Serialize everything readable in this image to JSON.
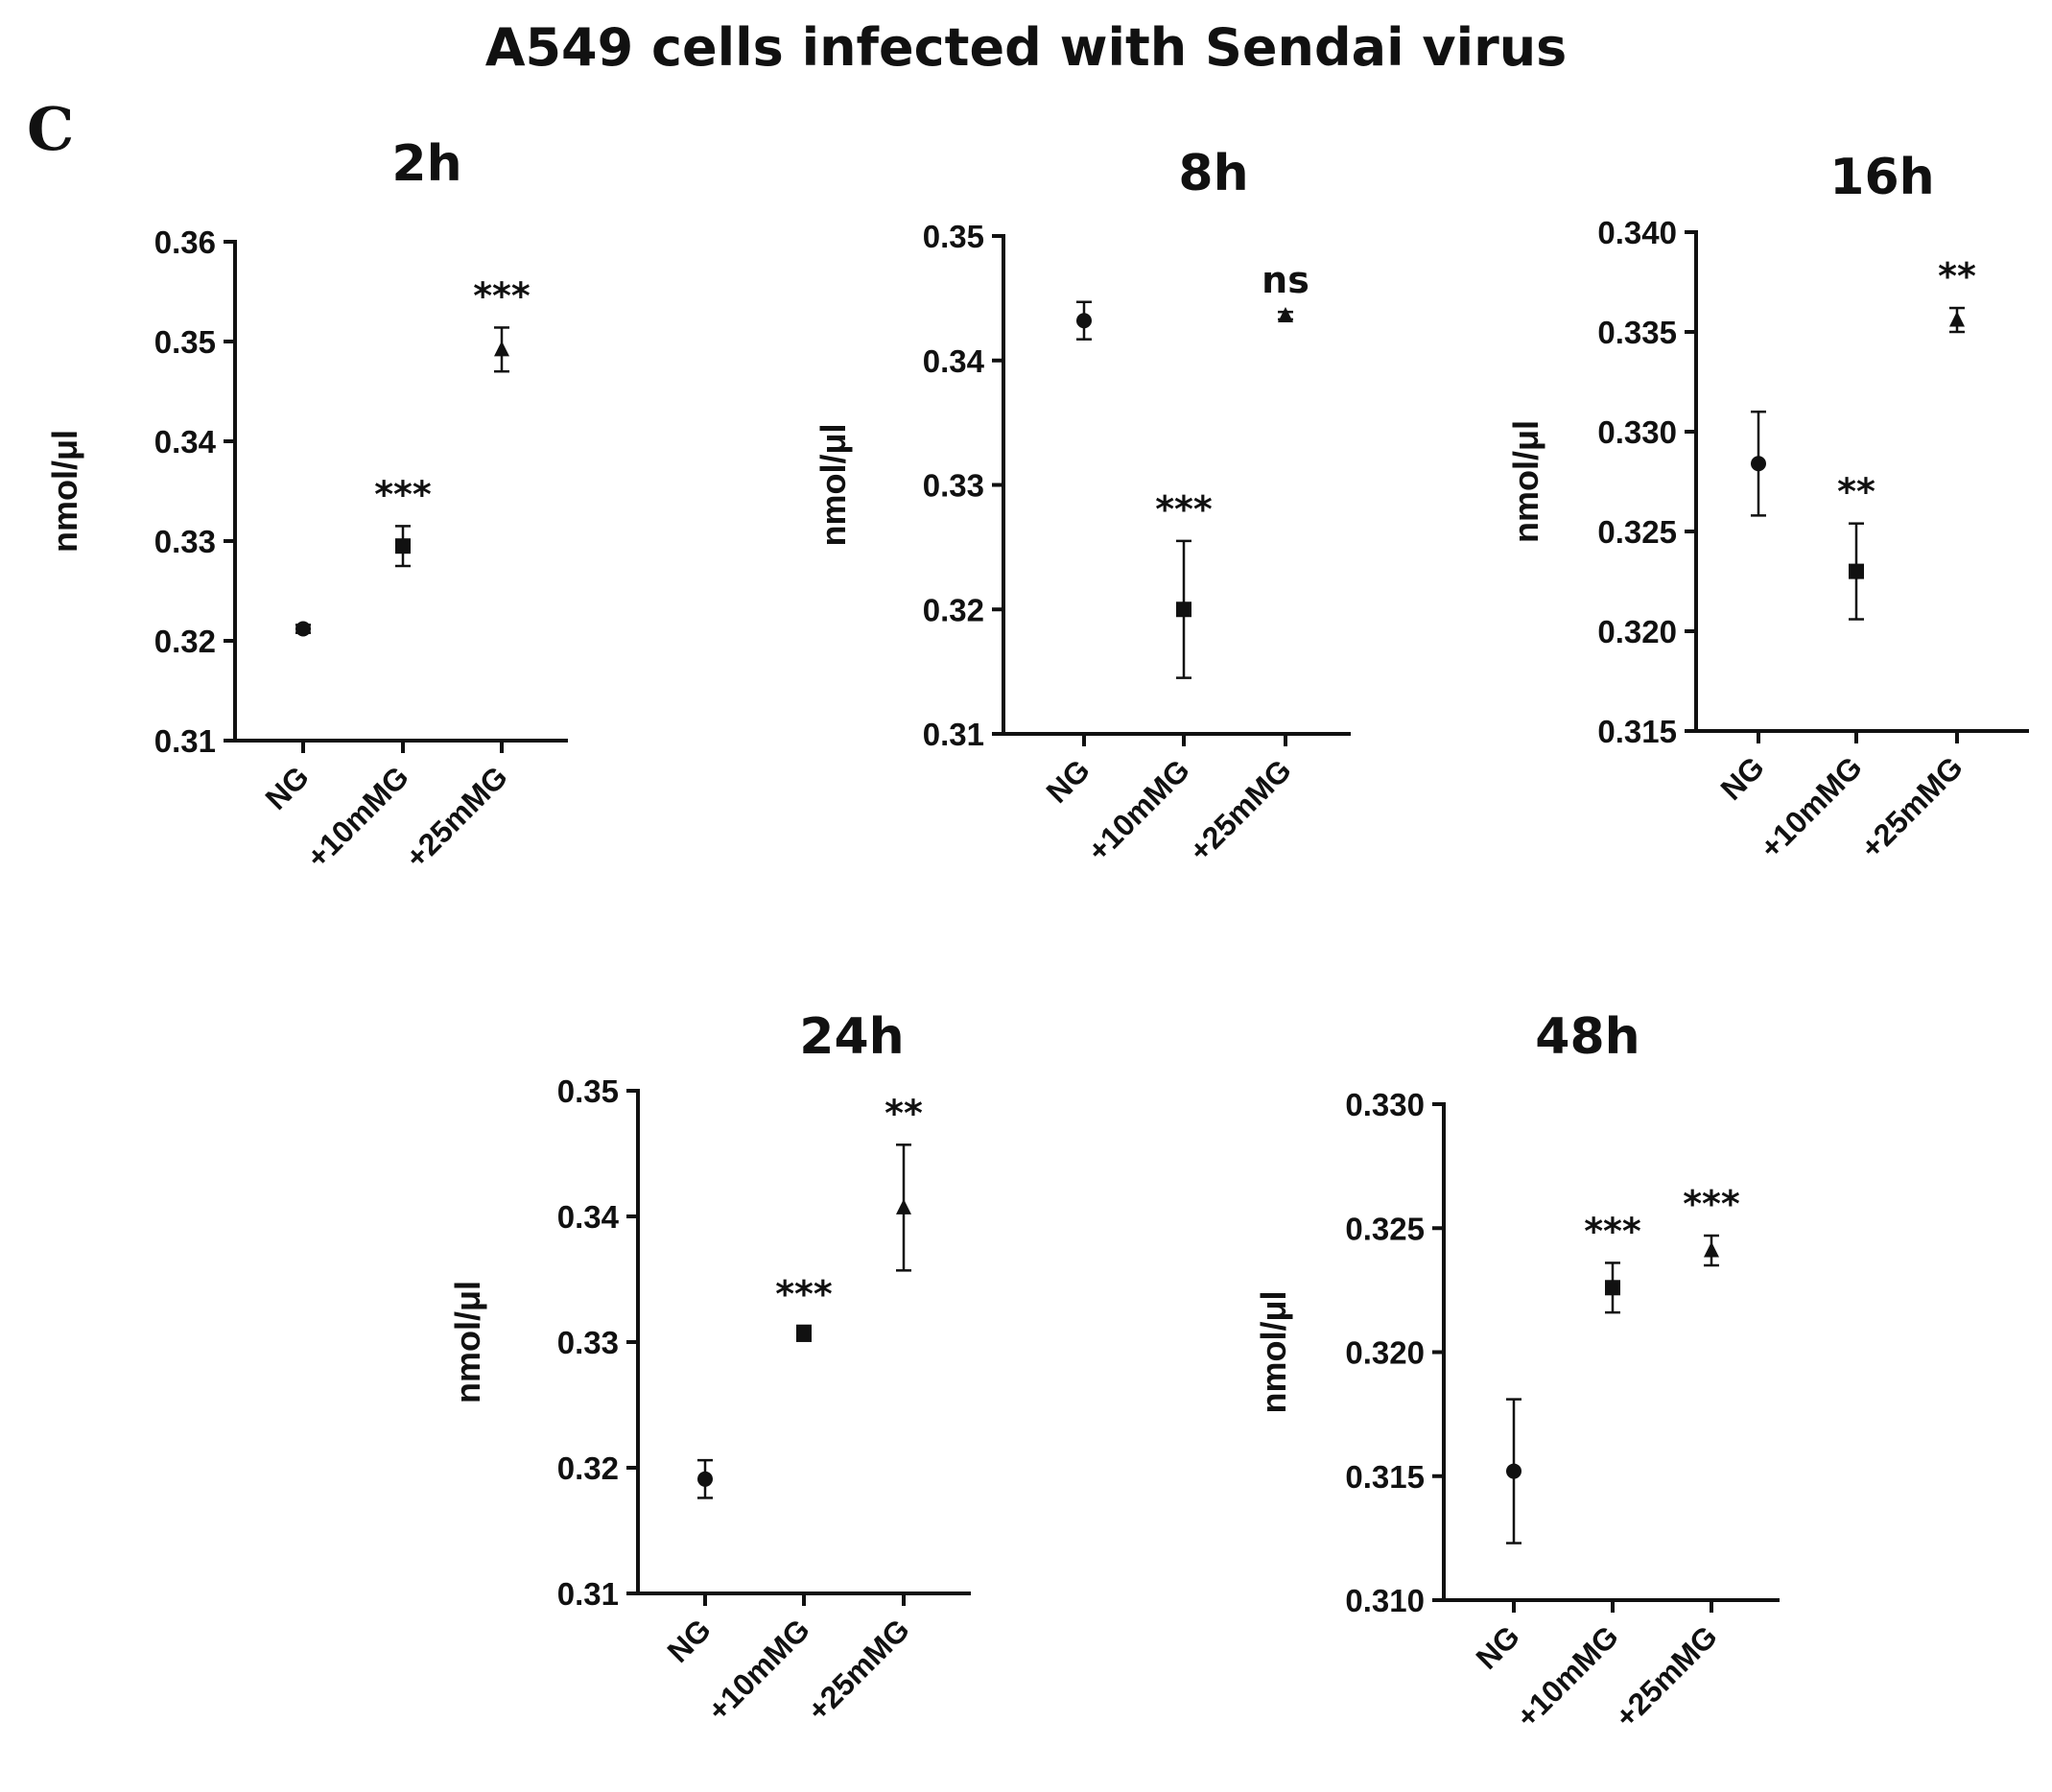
{
  "figure": {
    "title": "A549 cells infected with Sendai virus",
    "panel_letter": "C"
  },
  "chart_data": [
    {
      "type": "scatter",
      "title": "2h",
      "ylabel": "nmol/μl",
      "xlabel": "",
      "categories": [
        "NG",
        "+10mMG",
        "+25mMG"
      ],
      "ylim": [
        0.31,
        0.36
      ],
      "yticks": [
        "0.31",
        "0.32",
        "0.33",
        "0.34",
        "0.35",
        "0.36"
      ],
      "markers": [
        "circle",
        "square",
        "triangle"
      ],
      "values": [
        0.3212,
        0.3295,
        0.3492
      ],
      "error": [
        0.0004,
        0.002,
        0.0022
      ],
      "significance": [
        "",
        "***",
        "***"
      ]
    },
    {
      "type": "scatter",
      "title": "8h",
      "ylabel": "nmol/μl",
      "xlabel": "",
      "categories": [
        "NG",
        "+10mMG",
        "+25mMG"
      ],
      "ylim": [
        0.31,
        0.35
      ],
      "yticks": [
        "0.31",
        "0.32",
        "0.33",
        "0.34",
        "0.35"
      ],
      "markers": [
        "circle",
        "square",
        "triangle"
      ],
      "values": [
        0.3432,
        0.32,
        0.3436
      ],
      "error": [
        0.0015,
        0.0055,
        0.0003
      ],
      "significance": [
        "",
        "***",
        "ns"
      ]
    },
    {
      "type": "scatter",
      "title": "16h",
      "ylabel": "nmol/μl",
      "xlabel": "",
      "categories": [
        "NG",
        "+10mMG",
        "+25mMG"
      ],
      "ylim": [
        0.315,
        0.34
      ],
      "yticks": [
        "0.315",
        "0.320",
        "0.325",
        "0.330",
        "0.335",
        "0.340"
      ],
      "markers": [
        "circle",
        "square",
        "triangle"
      ],
      "values": [
        0.3284,
        0.323,
        0.3356
      ],
      "error": [
        0.0026,
        0.0024,
        0.0006
      ],
      "significance": [
        "",
        "**",
        "**"
      ]
    },
    {
      "type": "scatter",
      "title": "24h",
      "ylabel": "nmol/μl",
      "xlabel": "",
      "categories": [
        "NG",
        "+10mMG",
        "+25mMG"
      ],
      "ylim": [
        0.31,
        0.35
      ],
      "yticks": [
        "0.31",
        "0.32",
        "0.33",
        "0.34",
        "0.35"
      ],
      "markers": [
        "circle",
        "square",
        "triangle"
      ],
      "values": [
        0.3191,
        0.3307,
        0.3407
      ],
      "error": [
        0.0015,
        0.0006,
        0.005
      ],
      "significance": [
        "",
        "***",
        "**"
      ]
    },
    {
      "type": "scatter",
      "title": "48h",
      "ylabel": "nmol/μl",
      "xlabel": "",
      "categories": [
        "NG",
        "+10mMG",
        "+25mMG"
      ],
      "ylim": [
        0.31,
        0.33
      ],
      "yticks": [
        "0.310",
        "0.315",
        "0.320",
        "0.325",
        "0.330"
      ],
      "markers": [
        "circle",
        "square",
        "triangle"
      ],
      "values": [
        0.3152,
        0.3226,
        0.3241
      ],
      "error": [
        0.0029,
        0.001,
        0.0006
      ],
      "significance": [
        "",
        "***",
        "***"
      ]
    }
  ]
}
